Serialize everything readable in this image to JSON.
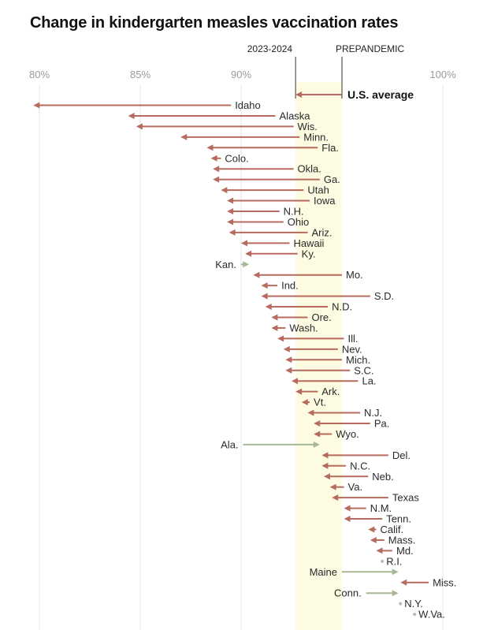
{
  "chart_data": {
    "type": "arrow-range",
    "title": "Change in kindergarten measles vaccination rates",
    "xlim": [
      80,
      100
    ],
    "ticks": [
      {
        "value": 80,
        "label": "80%"
      },
      {
        "value": 85,
        "label": "85%"
      },
      {
        "value": 90,
        "label": "90%"
      },
      {
        "value": 100,
        "label": "100%"
      }
    ],
    "band": {
      "start": 92.7,
      "end": 95.0
    },
    "band_labels": {
      "start": "2023-2024",
      "end": "PREPANDEMIC"
    },
    "us_average": {
      "label": "U.S. average",
      "from": 95.0,
      "to": 92.7
    },
    "colors": {
      "decrease": "#b76b5f",
      "increase": "#a7b898",
      "no_change": "#b8b8b8",
      "band": "#fdfbe1",
      "grid": "#e6e6e6",
      "tick_text": "#9a9a9a",
      "label_text": "#2a2a2a"
    },
    "states": [
      {
        "name": "Idaho",
        "from": 89.5,
        "to": 79.7
      },
      {
        "name": "Alaska",
        "from": 91.7,
        "to": 84.4
      },
      {
        "name": "Wis.",
        "from": 92.6,
        "to": 84.8
      },
      {
        "name": "Minn.",
        "from": 92.9,
        "to": 87.0
      },
      {
        "name": "Fla.",
        "from": 93.8,
        "to": 88.3
      },
      {
        "name": "Colo.",
        "from": 89.0,
        "to": 88.5
      },
      {
        "name": "Okla.",
        "from": 92.6,
        "to": 88.6
      },
      {
        "name": "Ga.",
        "from": 93.9,
        "to": 88.6
      },
      {
        "name": "Utah",
        "from": 93.1,
        "to": 89.0
      },
      {
        "name": "Iowa",
        "from": 93.4,
        "to": 89.3
      },
      {
        "name": "N.H.",
        "from": 91.9,
        "to": 89.3
      },
      {
        "name": "Ohio",
        "from": 92.1,
        "to": 89.3
      },
      {
        "name": "Ariz.",
        "from": 93.3,
        "to": 89.4
      },
      {
        "name": "Hawaii",
        "from": 92.4,
        "to": 90.0
      },
      {
        "name": "Ky.",
        "from": 92.8,
        "to": 90.2
      },
      {
        "name": "Kan.",
        "from": 90.0,
        "to": 90.4
      },
      {
        "name": "Mo.",
        "from": 95.0,
        "to": 90.6
      },
      {
        "name": "Ind.",
        "from": 91.8,
        "to": 91.0
      },
      {
        "name": "S.D.",
        "from": 96.4,
        "to": 91.0
      },
      {
        "name": "N.D.",
        "from": 94.3,
        "to": 91.2
      },
      {
        "name": "Ore.",
        "from": 93.3,
        "to": 91.5
      },
      {
        "name": "Wash.",
        "from": 92.2,
        "to": 91.5
      },
      {
        "name": "Ill.",
        "from": 95.1,
        "to": 91.8
      },
      {
        "name": "Nev.",
        "from": 94.8,
        "to": 92.1
      },
      {
        "name": "Mich.",
        "from": 95.0,
        "to": 92.2
      },
      {
        "name": "S.C.",
        "from": 95.4,
        "to": 92.2
      },
      {
        "name": "La.",
        "from": 95.8,
        "to": 92.5
      },
      {
        "name": "Ark.",
        "from": 93.8,
        "to": 92.7
      },
      {
        "name": "Vt.",
        "from": 93.4,
        "to": 93.0
      },
      {
        "name": "N.J.",
        "from": 95.9,
        "to": 93.3
      },
      {
        "name": "Pa.",
        "from": 96.4,
        "to": 93.6
      },
      {
        "name": "Wyo.",
        "from": 94.5,
        "to": 93.6
      },
      {
        "name": "Ala.",
        "from": 90.1,
        "to": 93.9
      },
      {
        "name": "Del.",
        "from": 97.3,
        "to": 94.0
      },
      {
        "name": "N.C.",
        "from": 95.2,
        "to": 94.0
      },
      {
        "name": "Neb.",
        "from": 96.3,
        "to": 94.1
      },
      {
        "name": "Va.",
        "from": 95.1,
        "to": 94.4
      },
      {
        "name": "Texas",
        "from": 97.3,
        "to": 94.5
      },
      {
        "name": "N.M.",
        "from": 96.2,
        "to": 95.1
      },
      {
        "name": "Tenn.",
        "from": 97.0,
        "to": 95.1
      },
      {
        "name": "Calif.",
        "from": 96.7,
        "to": 96.3
      },
      {
        "name": "Mass.",
        "from": 97.1,
        "to": 96.4
      },
      {
        "name": "Md.",
        "from": 97.5,
        "to": 96.7
      },
      {
        "name": "R.I.",
        "from": 97.0,
        "to": 97.0
      },
      {
        "name": "Maine",
        "from": 95.0,
        "to": 97.8
      },
      {
        "name": "Miss.",
        "from": 99.3,
        "to": 97.9
      },
      {
        "name": "Conn.",
        "from": 96.2,
        "to": 97.8
      },
      {
        "name": "N.Y.",
        "from": 97.9,
        "to": 97.9
      },
      {
        "name": "W.Va.",
        "from": 98.6,
        "to": 98.6
      }
    ]
  }
}
